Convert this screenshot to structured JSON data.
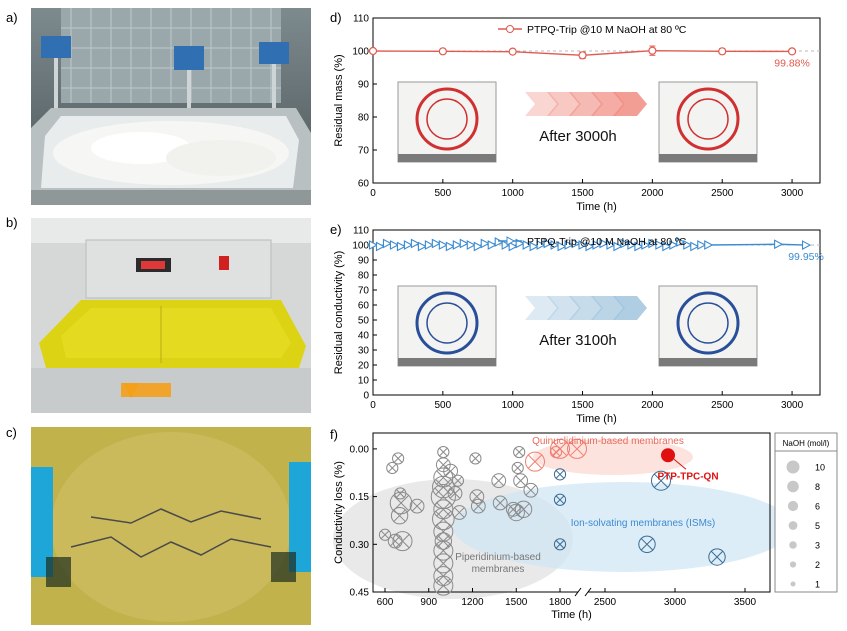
{
  "panels": {
    "a": "a)",
    "b": "b)",
    "c": "c)",
    "d": "d)",
    "e": "e)",
    "f": "f)"
  },
  "chart_data": [
    {
      "type": "line",
      "panel": "d",
      "legend": "PTPQ-Trip @10 M NaOH at 80 ºC",
      "xlabel": "Time (h)",
      "ylabel": "Residual mass (%)",
      "xlim": [
        0,
        3200
      ],
      "ylim": [
        60,
        110
      ],
      "xticks": [
        0,
        500,
        1000,
        1500,
        2000,
        2500,
        3000
      ],
      "yticks": [
        60,
        70,
        80,
        90,
        100,
        110
      ],
      "color": "#e05a4e",
      "x": [
        0,
        500,
        1000,
        1500,
        2000,
        2500,
        3000
      ],
      "y": [
        100,
        99.9,
        99.8,
        98.7,
        100.1,
        99.9,
        99.88
      ],
      "err": [
        0.6,
        0.5,
        0.7,
        1.0,
        1.4,
        0.8,
        0.5
      ],
      "annotation": "99.88%",
      "inset_text": "After 3000h"
    },
    {
      "type": "line",
      "panel": "e",
      "legend": "PTPQ-Trip @10 M NaOH at 80 ºC",
      "xlabel": "Time (h)",
      "ylabel": "Residual conductivity (%)",
      "xlim": [
        0,
        3200
      ],
      "ylim": [
        0,
        110
      ],
      "xticks": [
        0,
        500,
        1000,
        1500,
        2000,
        2500,
        3000
      ],
      "yticks": [
        0,
        10,
        20,
        30,
        40,
        50,
        60,
        70,
        80,
        90,
        100,
        110
      ],
      "color": "#3c8bd0",
      "x": [
        0,
        50,
        100,
        150,
        200,
        250,
        300,
        350,
        400,
        450,
        500,
        550,
        600,
        650,
        700,
        750,
        800,
        850,
        900,
        950,
        1000,
        1050,
        1100,
        1150,
        1200,
        1250,
        1300,
        1350,
        1400,
        1450,
        1500,
        1550,
        1600,
        1650,
        1700,
        1750,
        1800,
        1850,
        1900,
        1950,
        2000,
        2050,
        2100,
        2150,
        2200,
        2250,
        2300,
        2350,
        2400,
        2900,
        3100
      ],
      "y": [
        100,
        99,
        101,
        100,
        99,
        100,
        101,
        99,
        100,
        101,
        100,
        99,
        100,
        101,
        100,
        99,
        101,
        100,
        102,
        100,
        99,
        101,
        100,
        99,
        100,
        101,
        100,
        99,
        100,
        101,
        100,
        99,
        100,
        101,
        100,
        99,
        101,
        100,
        99,
        100,
        101,
        100,
        99,
        100,
        102,
        100,
        99,
        100,
        100,
        100.5,
        99.95
      ],
      "annotation": "99.95%",
      "inset_text": "After 3100h"
    },
    {
      "type": "scatter",
      "panel": "f",
      "xlabel": "Time (h)",
      "ylabel": "Conductivity loss (%)",
      "ylim": [
        -0.05,
        0.45
      ],
      "yticks": [
        0.0,
        0.15,
        0.3,
        0.45
      ],
      "ytick_labels": [
        "0.00",
        "0.15",
        "0.30",
        "0.45"
      ],
      "xtick_labels": [
        "600",
        "900",
        "1200",
        "1500",
        "1800",
        "2500",
        "3000",
        "3500"
      ],
      "axis_break": "between 1800 and 2500",
      "groups": [
        {
          "label": "Piperidinium-based membranes",
          "color": "#8a8a8a",
          "points": [
            {
              "x": 600,
              "y": 0.27,
              "s": 2
            },
            {
              "x": 650,
              "y": 0.06,
              "s": 2
            },
            {
              "x": 670,
              "y": 0.29,
              "s": 3
            },
            {
              "x": 690,
              "y": 0.03,
              "s": 2
            },
            {
              "x": 700,
              "y": 0.21,
              "s": 4
            },
            {
              "x": 705,
              "y": 0.14,
              "s": 2
            },
            {
              "x": 710,
              "y": 0.17,
              "s": 6
            },
            {
              "x": 720,
              "y": 0.29,
              "s": 5
            },
            {
              "x": 820,
              "y": 0.18,
              "s": 3
            },
            {
              "x": 1000,
              "y": 0.01,
              "s": 2
            },
            {
              "x": 1000,
              "y": 0.05,
              "s": 3
            },
            {
              "x": 1000,
              "y": 0.09,
              "s": 5
            },
            {
              "x": 1000,
              "y": 0.12,
              "s": 6
            },
            {
              "x": 1000,
              "y": 0.15,
              "s": 7
            },
            {
              "x": 1000,
              "y": 0.19,
              "s": 5
            },
            {
              "x": 1000,
              "y": 0.22,
              "s": 6
            },
            {
              "x": 1000,
              "y": 0.26,
              "s": 5
            },
            {
              "x": 1000,
              "y": 0.29,
              "s": 4
            },
            {
              "x": 1000,
              "y": 0.32,
              "s": 5
            },
            {
              "x": 1000,
              "y": 0.36,
              "s": 5
            },
            {
              "x": 1000,
              "y": 0.4,
              "s": 5
            },
            {
              "x": 1000,
              "y": 0.43,
              "s": 5
            },
            {
              "x": 1050,
              "y": 0.07,
              "s": 3
            },
            {
              "x": 1080,
              "y": 0.14,
              "s": 3
            },
            {
              "x": 1100,
              "y": 0.1,
              "s": 2
            },
            {
              "x": 1110,
              "y": 0.2,
              "s": 3
            },
            {
              "x": 1220,
              "y": 0.03,
              "s": 2
            },
            {
              "x": 1230,
              "y": 0.15,
              "s": 3
            },
            {
              "x": 1240,
              "y": 0.18,
              "s": 3
            },
            {
              "x": 1380,
              "y": 0.1,
              "s": 3
            },
            {
              "x": 1390,
              "y": 0.17,
              "s": 3
            },
            {
              "x": 1480,
              "y": 0.19,
              "s": 3
            },
            {
              "x": 1500,
              "y": 0.2,
              "s": 4
            },
            {
              "x": 1510,
              "y": 0.06,
              "s": 2
            },
            {
              "x": 1520,
              "y": 0.01,
              "s": 2
            },
            {
              "x": 1530,
              "y": 0.1,
              "s": 3
            },
            {
              "x": 1550,
              "y": 0.19,
              "s": 4
            },
            {
              "x": 1600,
              "y": 0.13,
              "s": 3
            }
          ]
        },
        {
          "label": "Quinuclidinium-based membranes",
          "color": "#f07f72",
          "points": [
            {
              "x": 1800,
              "y": 0.0,
              "s": 5
            },
            {
              "x": 2000,
              "y": 0.04,
              "s": 5
            },
            {
              "x": 2150,
              "y": 0.01,
              "s": 2
            },
            {
              "x": 2300,
              "y": 0.0,
              "s": 5
            }
          ]
        },
        {
          "label": "Ion-solvating membranes (ISMs)",
          "color": "#3a6b95",
          "points": [
            {
              "x": 1800,
              "y": 0.08,
              "s": 2
            },
            {
              "x": 1800,
              "y": 0.16,
              "s": 2
            },
            {
              "x": 1800,
              "y": 0.3,
              "s": 2
            },
            {
              "x": 2900,
              "y": 0.1,
              "s": 5
            },
            {
              "x": 2800,
              "y": 0.3,
              "s": 4
            },
            {
              "x": 3300,
              "y": 0.34,
              "s": 4
            }
          ]
        }
      ],
      "highlight": {
        "label": "PTP-TPC-QN",
        "x": 2950,
        "y": 0.02,
        "color": "#e01010"
      },
      "size_legend": {
        "title": "NaOH (mol/l)",
        "values": [
          "10",
          "8",
          "6",
          "5",
          "3",
          "2",
          "1"
        ]
      }
    }
  ]
}
